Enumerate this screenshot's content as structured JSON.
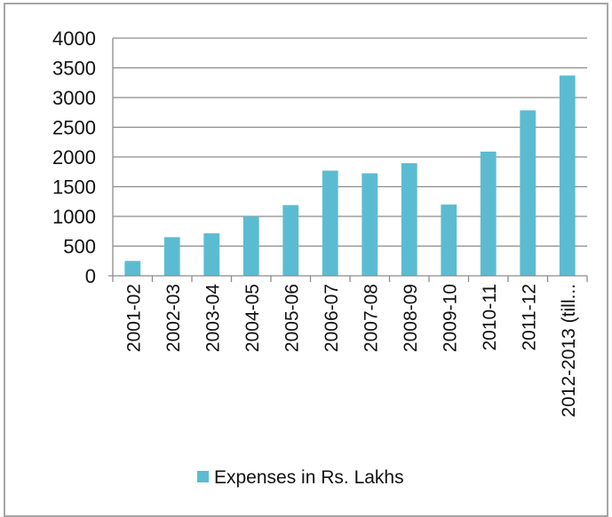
{
  "chart_data": {
    "type": "bar",
    "title": "",
    "xlabel": "",
    "ylabel": "",
    "ylim": [
      0,
      4000
    ],
    "yticks": [
      0,
      500,
      1000,
      1500,
      2000,
      2500,
      3000,
      3500,
      4000
    ],
    "grid": true,
    "legend_position": "bottom",
    "categories": [
      "2001-02",
      "2002-03",
      "2003-04",
      "2004-05",
      "2005-06",
      "2006-07",
      "2007-08",
      "2008-09",
      "2009-10",
      "2010-11",
      "2011-12",
      "2012-2013 (till..."
    ],
    "series": [
      {
        "name": "Expenses in Rs. Lakhs",
        "color": "#5bbcd1",
        "values": [
          250,
          650,
          715,
          1000,
          1190,
          1770,
          1725,
          1895,
          1200,
          2090,
          2785,
          3370
        ]
      }
    ]
  }
}
